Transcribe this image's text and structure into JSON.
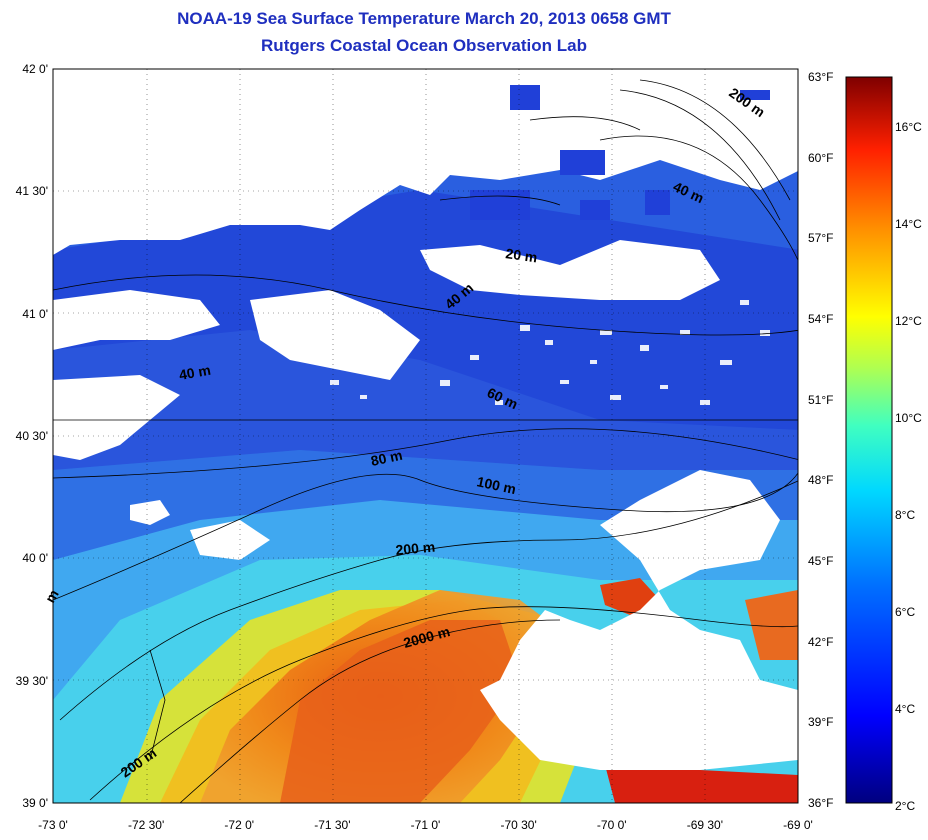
{
  "title_line1": "NOAA-19 Sea Surface Temperature March 20, 2013 0658 GMT",
  "title_line2": "Rutgers Coastal Ocean Observation Lab",
  "lat_labels": [
    "42 0'",
    "41 30'",
    "41 0'",
    "40 30'",
    "40 0'",
    "39 30'",
    "39 0'"
  ],
  "lon_labels": [
    "-73 0'",
    "-72 30'",
    "-72 0'",
    "-71 30'",
    "-71 0'",
    "-70 30'",
    "-70 0'",
    "-69 30'",
    "-69 0'"
  ],
  "fahrenheit_labels": [
    "63°F",
    "60°F",
    "57°F",
    "54°F",
    "51°F",
    "48°F",
    "45°F",
    "42°F",
    "39°F",
    "36°F"
  ],
  "celsius_labels": [
    "16°C",
    "14°C",
    "12°C",
    "10°C",
    "8°C",
    "6°C",
    "4°C",
    "2°C"
  ],
  "contour_labels": [
    "200 m",
    "40 m",
    "20 m",
    "40 m",
    "40 m",
    "60 m",
    "80 m",
    "100 m",
    "200 m",
    "2000 m",
    "200 m",
    "m"
  ],
  "colors": {
    "title": "#1f2fbf",
    "land": "#ffffff",
    "cold": "#1a3fd9",
    "cool": "#3a8ee8",
    "mid": "#40d0f0",
    "warm": "#f0e020",
    "hot": "#f07010",
    "hotter": "#d82010"
  }
}
